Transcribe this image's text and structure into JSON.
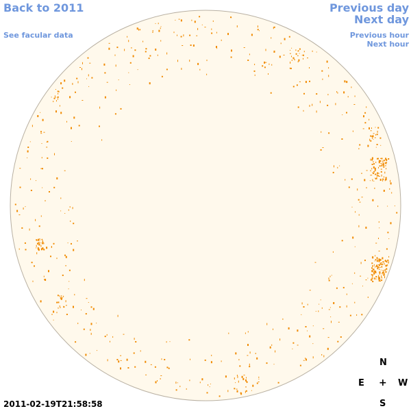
{
  "nav": {
    "back_label": "Back to 2011",
    "facular_label": "See facular data",
    "prev_day_label": "Previous day",
    "next_day_label": "Next day",
    "prev_hour_label": "Previous hour",
    "next_hour_label": "Next hour"
  },
  "compass": {
    "north": "N",
    "east": "E",
    "center": "+",
    "west": "W",
    "south": "S"
  },
  "timestamp": "2011-02-19T21:58:58",
  "colors": {
    "link": "#6f97dd",
    "disk_fill": "#fff9ec",
    "disk_border": "#b8b0a2",
    "spot": "#f08a00"
  }
}
